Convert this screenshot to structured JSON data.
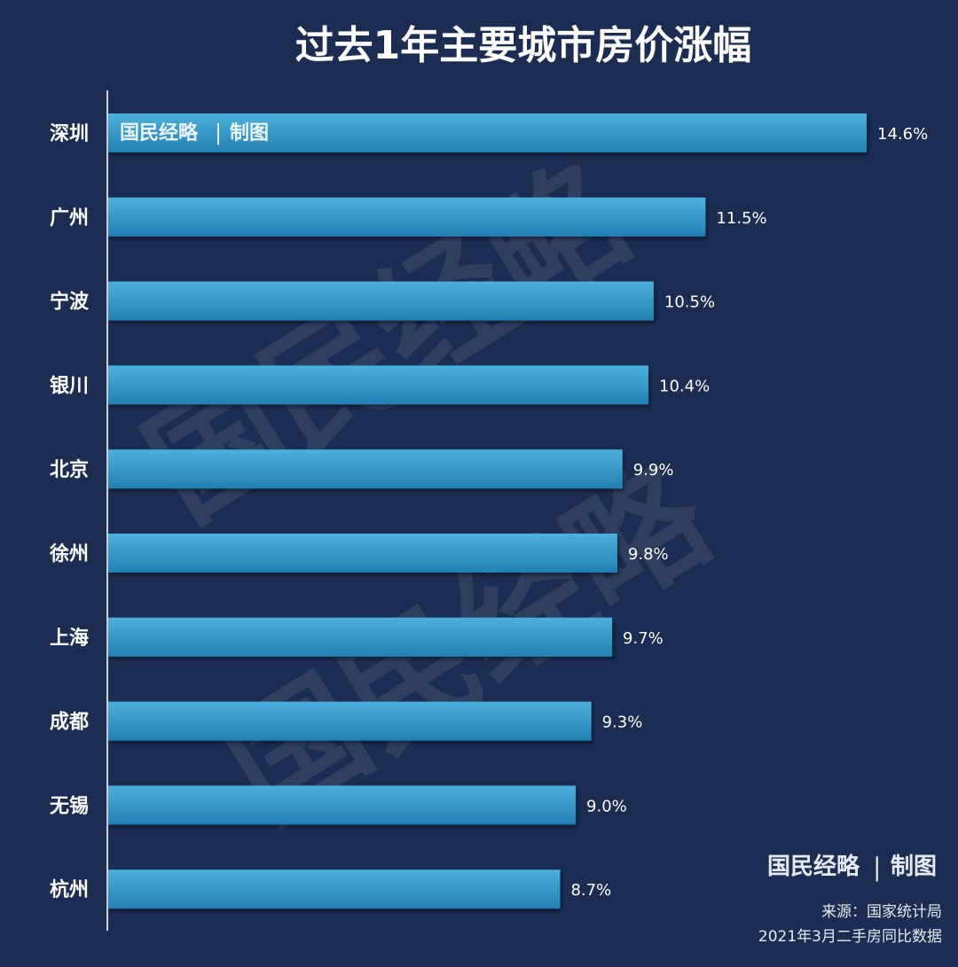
{
  "chart_data": {
    "type": "bar",
    "orientation": "horizontal",
    "title": "过去1年主要城市房价涨幅",
    "categories": [
      "深圳",
      "广州",
      "宁波",
      "银川",
      "北京",
      "徐州",
      "上海",
      "成都",
      "无锡",
      "杭州"
    ],
    "values": [
      14.6,
      11.5,
      10.5,
      10.4,
      9.9,
      9.8,
      9.7,
      9.3,
      9.0,
      8.7
    ],
    "value_labels": [
      "14.6%",
      "11.5%",
      "10.5%",
      "10.4%",
      "9.9%",
      "9.8%",
      "9.7%",
      "9.3%",
      "9.0%",
      "8.7%"
    ],
    "unit": "%",
    "xlim": [
      0,
      14.6
    ],
    "grid": false,
    "legend": "none"
  },
  "branding": {
    "name": "国民经略",
    "separator": "|",
    "suffix": "制图",
    "watermark_text": "国民经略"
  },
  "source": {
    "line1": "来源：国家统计局",
    "line2": "2021年3月二手房同比数据"
  },
  "colors": {
    "background": "#1b2d52",
    "bar_top": "#4db0dc",
    "bar_bottom": "#2280b3",
    "text": "#ffffff",
    "axis": "#c9d3e2"
  }
}
